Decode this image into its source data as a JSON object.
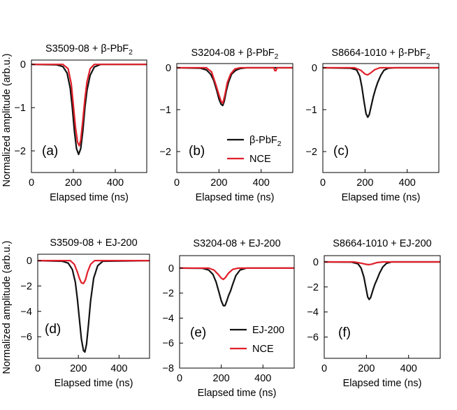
{
  "figure": {
    "row_ylabels": [
      "Normalized amplitude  (arb.u.)",
      "Normalized amplitude  (arb.u.)"
    ]
  },
  "colors": {
    "black_trace": "#111111",
    "red_trace": "#e0202a",
    "axis": "#000000"
  },
  "chart_data": [
    {
      "type": "line",
      "panel_label": "(a)",
      "title": "S3509-08 + β-PbF",
      "title_sub": "2",
      "xlabel": "Elapsed time (ns)",
      "ylabel": "",
      "xlim": [
        0,
        550
      ],
      "ylim": [
        -2.5,
        0.1
      ],
      "xticks": [
        0,
        200,
        400
      ],
      "yticks": [
        0,
        -1,
        -2
      ],
      "legend": null,
      "series": [
        {
          "name": "β-PbF2",
          "color": "#111111",
          "x": [
            0,
            120,
            150,
            170,
            185,
            195,
            205,
            215,
            225,
            235,
            245,
            255,
            265,
            280,
            300,
            330,
            550
          ],
          "y": [
            0,
            -0.01,
            -0.05,
            -0.2,
            -0.55,
            -1.0,
            -1.55,
            -1.95,
            -2.08,
            -1.95,
            -1.55,
            -1.0,
            -0.6,
            -0.25,
            -0.06,
            0,
            0
          ]
        },
        {
          "name": "NCE",
          "color": "#e0202a",
          "x": [
            0,
            150,
            175,
            190,
            200,
            210,
            220,
            228,
            235,
            245,
            255,
            265,
            280,
            300,
            550
          ],
          "y": [
            0,
            0,
            -0.1,
            -0.45,
            -0.95,
            -1.45,
            -1.8,
            -1.88,
            -1.75,
            -1.3,
            -0.8,
            -0.4,
            -0.1,
            0,
            0
          ]
        }
      ]
    },
    {
      "type": "line",
      "panel_label": "(b)",
      "title": "S3204-08 + β-PbF",
      "title_sub": "2",
      "xlabel": "Elapsed time (ns)",
      "ylabel": "",
      "xlim": [
        0,
        550
      ],
      "ylim": [
        -2.5,
        0.1
      ],
      "xticks": [
        0,
        200,
        400
      ],
      "yticks": [
        0,
        -1,
        -2
      ],
      "legend": [
        {
          "name": "β-PbF",
          "sub": "2",
          "color": "#111111"
        },
        {
          "name": "NCE",
          "sub": "",
          "color": "#e0202a"
        }
      ],
      "series": [
        {
          "name": "β-PbF2",
          "color": "#111111",
          "x": [
            0,
            110,
            140,
            160,
            175,
            190,
            200,
            210,
            218,
            225,
            235,
            245,
            260,
            280,
            300,
            330,
            550
          ],
          "y": [
            0,
            -0.01,
            -0.05,
            -0.15,
            -0.3,
            -0.55,
            -0.75,
            -0.87,
            -0.9,
            -0.8,
            -0.55,
            -0.35,
            -0.15,
            -0.06,
            -0.02,
            0,
            0
          ]
        },
        {
          "name": "NCE",
          "color": "#e0202a",
          "x": [
            0,
            140,
            165,
            185,
            200,
            210,
            218,
            228,
            240,
            255,
            275,
            300,
            460,
            465,
            470,
            475,
            550
          ],
          "y": [
            0,
            0,
            -0.1,
            -0.4,
            -0.65,
            -0.8,
            -0.85,
            -0.65,
            -0.35,
            -0.15,
            -0.03,
            0,
            0,
            -0.07,
            -0.07,
            0,
            0
          ]
        }
      ]
    },
    {
      "type": "line",
      "panel_label": "(c)",
      "title": "S8664-1010 + β-PbF",
      "title_sub": "2",
      "xlabel": "Elapsed time (ns)",
      "ylabel": "",
      "xlim": [
        0,
        550
      ],
      "ylim": [
        -2.5,
        0.1
      ],
      "xticks": [
        0,
        200,
        400
      ],
      "yticks": [
        0,
        -1,
        -2
      ],
      "legend": null,
      "series": [
        {
          "name": "β-PbF2",
          "color": "#111111",
          "x": [
            0,
            130,
            160,
            175,
            185,
            195,
            205,
            213,
            220,
            230,
            240,
            250,
            260,
            275,
            290,
            310,
            340,
            550
          ],
          "y": [
            0,
            -0.01,
            -0.05,
            -0.2,
            -0.45,
            -0.8,
            -1.1,
            -1.18,
            -1.12,
            -0.9,
            -0.68,
            -0.5,
            -0.35,
            -0.18,
            -0.06,
            -0.01,
            0,
            0
          ]
        },
        {
          "name": "NCE",
          "color": "#e0202a",
          "x": [
            0,
            150,
            180,
            200,
            212,
            225,
            245,
            270,
            550
          ],
          "y": [
            0,
            0,
            -0.06,
            -0.15,
            -0.17,
            -0.13,
            -0.05,
            0,
            0
          ]
        }
      ]
    },
    {
      "type": "line",
      "panel_label": "(d)",
      "title": "S3509-08 + EJ-200",
      "title_sub": "",
      "xlabel": "Elapsed time (ns)",
      "ylabel": "",
      "xlim": [
        0,
        550
      ],
      "ylim": [
        -7.7,
        0.5
      ],
      "xticks": [
        0,
        200,
        400
      ],
      "yticks": [
        0,
        -2,
        -4,
        -6
      ],
      "legend": null,
      "series": [
        {
          "name": "EJ-200",
          "color": "#111111",
          "x": [
            0,
            120,
            150,
            170,
            185,
            195,
            205,
            215,
            225,
            232,
            240,
            250,
            260,
            275,
            295,
            320,
            550
          ],
          "y": [
            0,
            -0.05,
            -0.2,
            -0.7,
            -1.7,
            -3.0,
            -4.6,
            -6.2,
            -7.1,
            -7.2,
            -6.6,
            -5.0,
            -3.2,
            -1.4,
            -0.4,
            -0.05,
            0
          ]
        },
        {
          "name": "NCE",
          "color": "#e0202a",
          "x": [
            0,
            160,
            180,
            195,
            205,
            215,
            225,
            235,
            245,
            260,
            280,
            550
          ],
          "y": [
            0,
            0,
            -0.3,
            -0.9,
            -1.4,
            -1.75,
            -1.8,
            -1.5,
            -0.9,
            -0.3,
            0,
            0
          ]
        }
      ]
    },
    {
      "type": "line",
      "panel_label": "(e)",
      "title": "S3204-08 + EJ-200",
      "title_sub": "",
      "xlabel": "Elapsed time (ns)",
      "ylabel": "",
      "xlim": [
        0,
        550
      ],
      "ylim": [
        -8,
        1
      ],
      "xticks": [
        0,
        200,
        400
      ],
      "yticks": [
        0,
        -2,
        -4,
        -6,
        -8
      ],
      "legend": [
        {
          "name": "EJ-200",
          "sub": "",
          "color": "#111111"
        },
        {
          "name": "NCE",
          "sub": "",
          "color": "#e0202a"
        }
      ],
      "series": [
        {
          "name": "EJ-200",
          "color": "#111111",
          "x": [
            0,
            110,
            140,
            160,
            175,
            190,
            200,
            210,
            218,
            225,
            235,
            245,
            255,
            270,
            290,
            320,
            550
          ],
          "y": [
            0,
            -0.02,
            -0.15,
            -0.5,
            -1.1,
            -2.0,
            -2.6,
            -3.0,
            -3.0,
            -2.7,
            -2.2,
            -1.8,
            -1.3,
            -0.6,
            -0.15,
            0,
            0
          ]
        },
        {
          "name": "NCE",
          "color": "#e0202a",
          "x": [
            0,
            140,
            165,
            185,
            200,
            210,
            220,
            235,
            255,
            280,
            550
          ],
          "y": [
            0,
            0,
            -0.15,
            -0.5,
            -0.8,
            -0.9,
            -0.75,
            -0.4,
            -0.1,
            0,
            0
          ]
        }
      ]
    },
    {
      "type": "line",
      "panel_label": "(f)",
      "title": "S8664-1010 + EJ-200",
      "title_sub": "",
      "xlabel": "Elapsed time (ns)",
      "ylabel": "",
      "xlim": [
        0,
        550
      ],
      "ylim": [
        -7.7,
        0.5
      ],
      "xticks": [
        0,
        200,
        400
      ],
      "yticks": [
        0,
        -2,
        -4,
        -6
      ],
      "legend": null,
      "series": [
        {
          "name": "EJ-200",
          "color": "#111111",
          "x": [
            0,
            130,
            160,
            175,
            188,
            198,
            206,
            213,
            220,
            230,
            240,
            250,
            262,
            278,
            295,
            320,
            550
          ],
          "y": [
            0,
            -0.02,
            -0.15,
            -0.5,
            -1.2,
            -2.1,
            -2.8,
            -3.0,
            -2.85,
            -2.3,
            -1.8,
            -1.4,
            -0.9,
            -0.4,
            -0.12,
            0,
            0
          ]
        },
        {
          "name": "NCE",
          "color": "#e0202a",
          "x": [
            0,
            140,
            175,
            200,
            212,
            225,
            250,
            280,
            550
          ],
          "y": [
            0,
            0,
            -0.1,
            -0.2,
            -0.22,
            -0.18,
            -0.05,
            0,
            0
          ]
        }
      ]
    }
  ]
}
